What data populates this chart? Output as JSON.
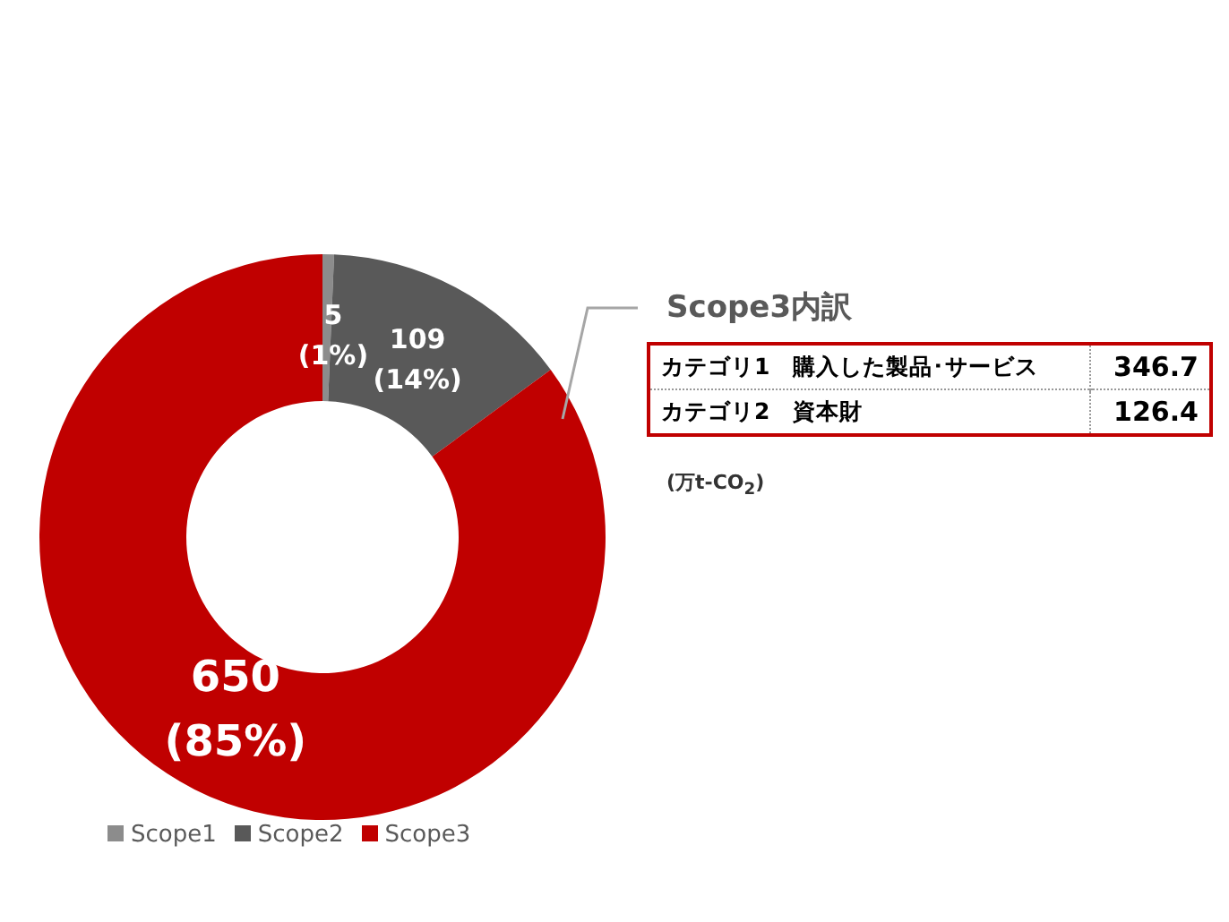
{
  "chart_data": {
    "type": "donut",
    "categories": [
      "Scope1",
      "Scope2",
      "Scope3"
    ],
    "values": [
      5,
      109,
      650
    ],
    "colors": [
      "#8c8c8c",
      "#595959",
      "#c00000"
    ],
    "value_labels": [
      "5\n(1%)",
      "109\n(14%)",
      "650\n(85%)"
    ],
    "legend": "bottom",
    "annotations": [
      "Scope3内訳",
      "カテゴリ1　購入した製品･サービス",
      "346.7",
      "カテゴリ2　資本財",
      "126.4",
      "(万t-CO$_{2}$)"
    ]
  }
}
